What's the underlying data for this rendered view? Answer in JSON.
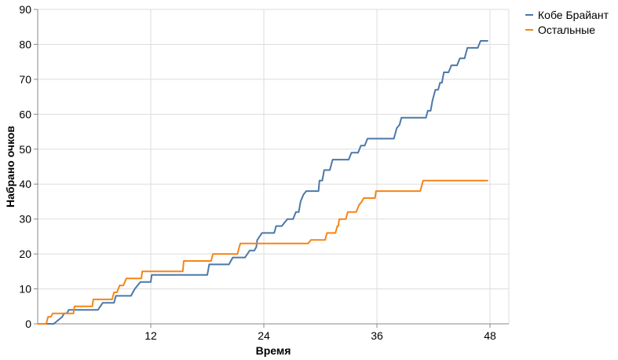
{
  "chart_data": {
    "type": "line",
    "title": "",
    "xlabel": "Время",
    "ylabel": "Набрано очков",
    "xlim": [
      0,
      50
    ],
    "ylim": [
      0,
      90
    ],
    "x_ticks": [
      12,
      24,
      36,
      48
    ],
    "y_ticks": [
      0,
      10,
      20,
      30,
      40,
      50,
      60,
      70,
      80,
      90
    ],
    "grid": true,
    "legend": "top-right",
    "series": [
      {
        "name": "Кобе Брайант",
        "color": "#4c78a8",
        "points": [
          [
            0,
            0
          ],
          [
            1.7,
            0
          ],
          [
            2.6,
            2
          ],
          [
            2.8,
            3
          ],
          [
            3.1,
            3
          ],
          [
            3.3,
            4
          ],
          [
            6.4,
            4
          ],
          [
            6.9,
            6
          ],
          [
            8.1,
            6
          ],
          [
            8.3,
            8
          ],
          [
            9.9,
            8
          ],
          [
            10.3,
            10
          ],
          [
            10.6,
            11
          ],
          [
            10.9,
            12
          ],
          [
            12.0,
            12
          ],
          [
            12.1,
            14
          ],
          [
            18.0,
            14
          ],
          [
            18.2,
            17
          ],
          [
            20.3,
            17
          ],
          [
            20.7,
            19
          ],
          [
            22.0,
            19
          ],
          [
            22.5,
            21
          ],
          [
            23.0,
            21
          ],
          [
            23.2,
            22
          ],
          [
            23.3,
            24
          ],
          [
            23.8,
            26
          ],
          [
            25.1,
            26
          ],
          [
            25.3,
            28
          ],
          [
            25.9,
            28
          ],
          [
            26.2,
            29
          ],
          [
            26.5,
            30
          ],
          [
            27.1,
            30
          ],
          [
            27.4,
            32
          ],
          [
            27.7,
            32
          ],
          [
            27.9,
            35
          ],
          [
            28.2,
            37
          ],
          [
            28.5,
            38
          ],
          [
            29.8,
            38
          ],
          [
            29.9,
            41
          ],
          [
            30.2,
            41
          ],
          [
            30.4,
            44
          ],
          [
            31.0,
            44
          ],
          [
            31.3,
            47
          ],
          [
            33.0,
            47
          ],
          [
            33.3,
            49
          ],
          [
            34.0,
            49
          ],
          [
            34.3,
            51
          ],
          [
            34.7,
            51
          ],
          [
            35.0,
            53
          ],
          [
            37.8,
            53
          ],
          [
            38.1,
            56
          ],
          [
            38.4,
            57
          ],
          [
            38.6,
            59
          ],
          [
            41.2,
            59
          ],
          [
            41.4,
            61
          ],
          [
            41.7,
            61
          ],
          [
            41.9,
            64
          ],
          [
            42.2,
            67
          ],
          [
            42.5,
            67
          ],
          [
            42.7,
            69
          ],
          [
            42.9,
            69
          ],
          [
            43.1,
            72
          ],
          [
            43.6,
            72
          ],
          [
            43.9,
            74
          ],
          [
            44.5,
            74
          ],
          [
            44.8,
            76
          ],
          [
            45.3,
            76
          ],
          [
            45.6,
            79
          ],
          [
            46.7,
            79
          ],
          [
            47.0,
            81
          ],
          [
            47.8,
            81
          ]
        ]
      },
      {
        "name": "Остальные",
        "color": "#f58518",
        "points": [
          [
            0,
            0
          ],
          [
            0.9,
            0
          ],
          [
            1.1,
            2
          ],
          [
            1.4,
            2
          ],
          [
            1.6,
            3
          ],
          [
            3.8,
            3
          ],
          [
            3.9,
            5
          ],
          [
            5.8,
            5
          ],
          [
            5.9,
            7
          ],
          [
            7.9,
            7
          ],
          [
            8.1,
            9
          ],
          [
            8.4,
            9
          ],
          [
            8.7,
            11
          ],
          [
            9.1,
            11
          ],
          [
            9.4,
            13
          ],
          [
            11.0,
            13
          ],
          [
            11.1,
            15
          ],
          [
            15.4,
            15
          ],
          [
            15.5,
            18
          ],
          [
            18.4,
            18
          ],
          [
            18.6,
            20
          ],
          [
            21.2,
            20
          ],
          [
            21.5,
            23
          ],
          [
            28.7,
            23
          ],
          [
            29.0,
            24
          ],
          [
            30.5,
            24
          ],
          [
            30.7,
            26
          ],
          [
            31.6,
            26
          ],
          [
            31.8,
            28
          ],
          [
            31.9,
            28
          ],
          [
            32.0,
            30
          ],
          [
            32.7,
            30
          ],
          [
            32.9,
            32
          ],
          [
            33.8,
            32
          ],
          [
            34.1,
            34
          ],
          [
            34.4,
            35
          ],
          [
            34.6,
            36
          ],
          [
            35.8,
            36
          ],
          [
            35.9,
            38
          ],
          [
            40.6,
            38
          ],
          [
            40.9,
            41
          ],
          [
            47.8,
            41
          ]
        ]
      }
    ]
  }
}
